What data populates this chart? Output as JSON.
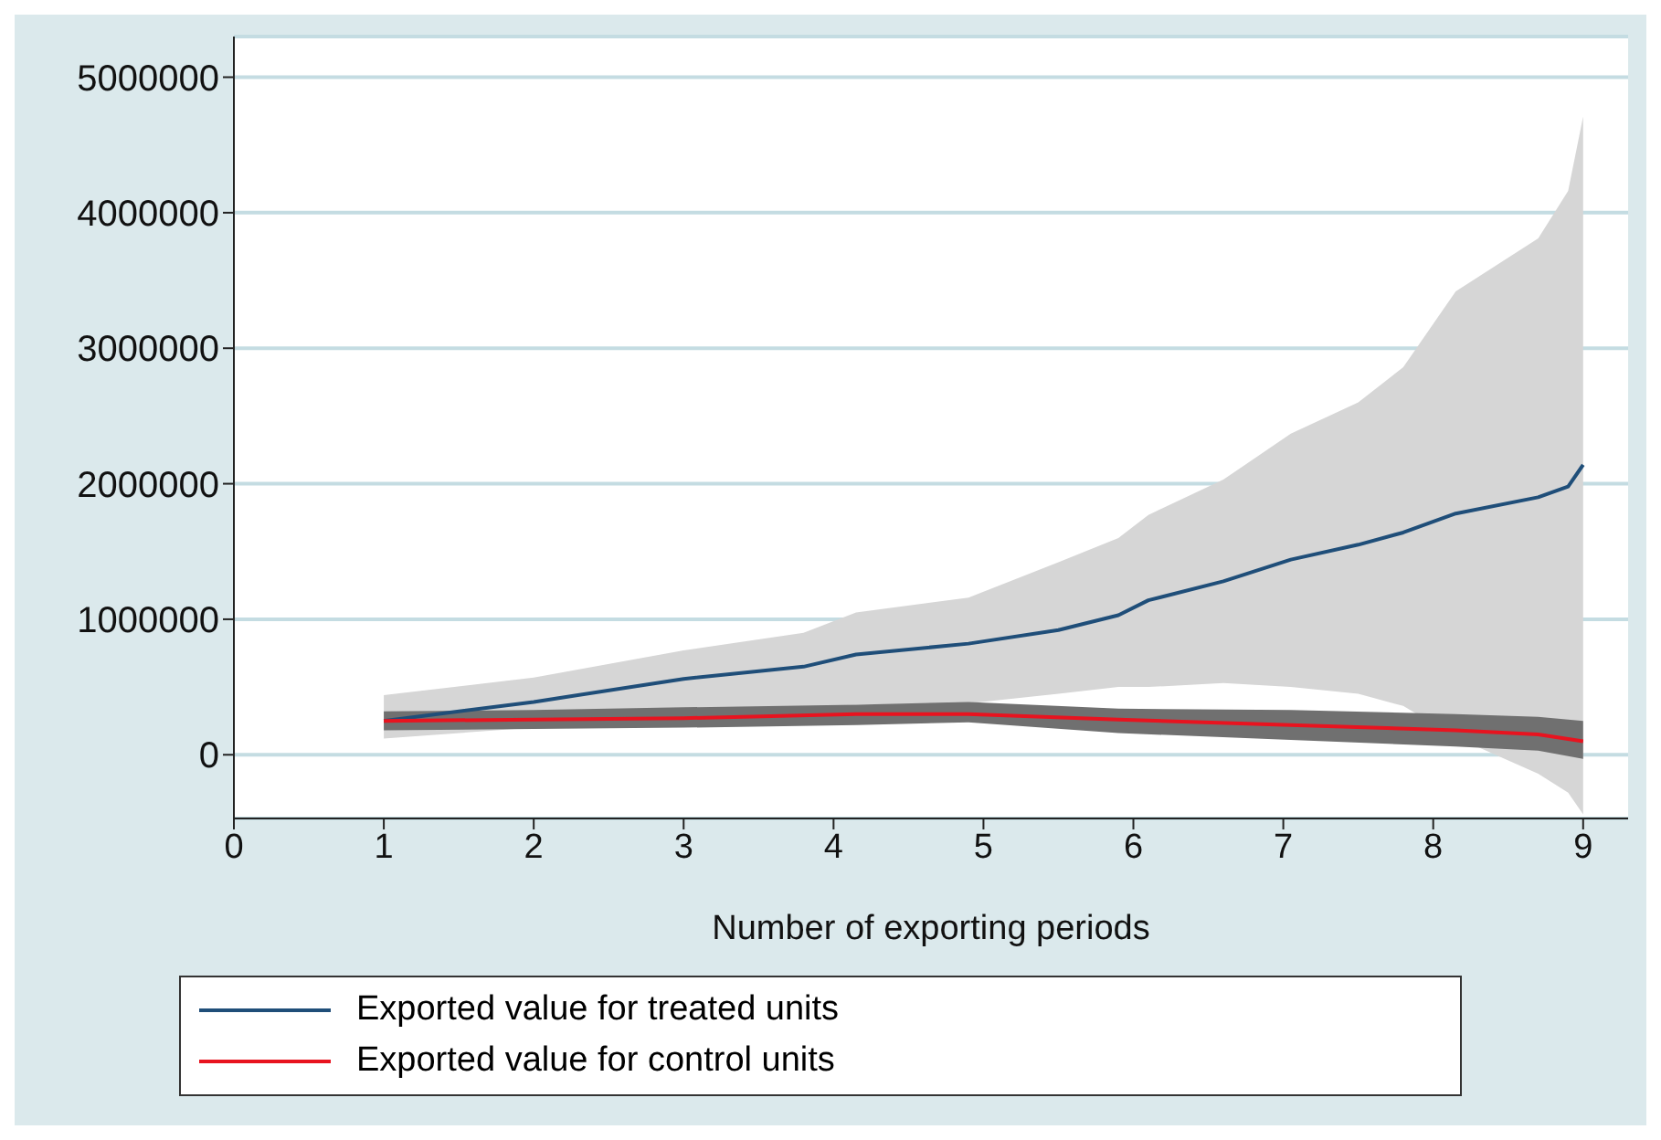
{
  "chart_data": {
    "type": "line",
    "xlabel": "Number of exporting periods",
    "xlim": [
      0,
      9.3
    ],
    "xticks": [
      0,
      1,
      2,
      3,
      4,
      5,
      6,
      7,
      8,
      9
    ],
    "ylim": [
      -470000,
      5300000
    ],
    "yticks": [
      0,
      1000000,
      2000000,
      3000000,
      4000000,
      5000000
    ],
    "grid": "y",
    "legend": "bottom",
    "marker": "none",
    "line_style": "solid",
    "series": [
      {
        "name": "Exported value for treated units",
        "color": "#1f4e79",
        "x": [
          1,
          2,
          3,
          3.8,
          4.15,
          4.9,
          5.5,
          5.9,
          6.1,
          6.6,
          7.05,
          7.5,
          7.8,
          8.15,
          8.7,
          8.9,
          9
        ],
        "values": [
          250000,
          390000,
          560000,
          650000,
          740000,
          820000,
          920000,
          1030000,
          1140000,
          1280000,
          1440000,
          1550000,
          1640000,
          1780000,
          1900000,
          1980000,
          2140000
        ],
        "lower": [
          120000,
          200000,
          300000,
          350000,
          370000,
          380000,
          450000,
          500000,
          500000,
          530000,
          500000,
          450000,
          360000,
          130000,
          -140000,
          -280000,
          -440000
        ],
        "upper": [
          440000,
          570000,
          770000,
          900000,
          1050000,
          1160000,
          1420000,
          1600000,
          1770000,
          2030000,
          2370000,
          2600000,
          2860000,
          3420000,
          3810000,
          4160000,
          4710000
        ]
      },
      {
        "name": "Exported value for control units",
        "color": "#e8131f",
        "x": [
          1,
          2,
          3,
          4.15,
          4.9,
          5.9,
          7.05,
          8.15,
          8.7,
          9
        ],
        "values": [
          250000,
          260000,
          270000,
          300000,
          300000,
          260000,
          220000,
          180000,
          150000,
          100000
        ],
        "lower": [
          180000,
          190000,
          200000,
          220000,
          240000,
          160000,
          110000,
          60000,
          30000,
          -30000
        ],
        "upper": [
          320000,
          330000,
          350000,
          370000,
          390000,
          340000,
          330000,
          300000,
          280000,
          250000
        ]
      }
    ]
  }
}
